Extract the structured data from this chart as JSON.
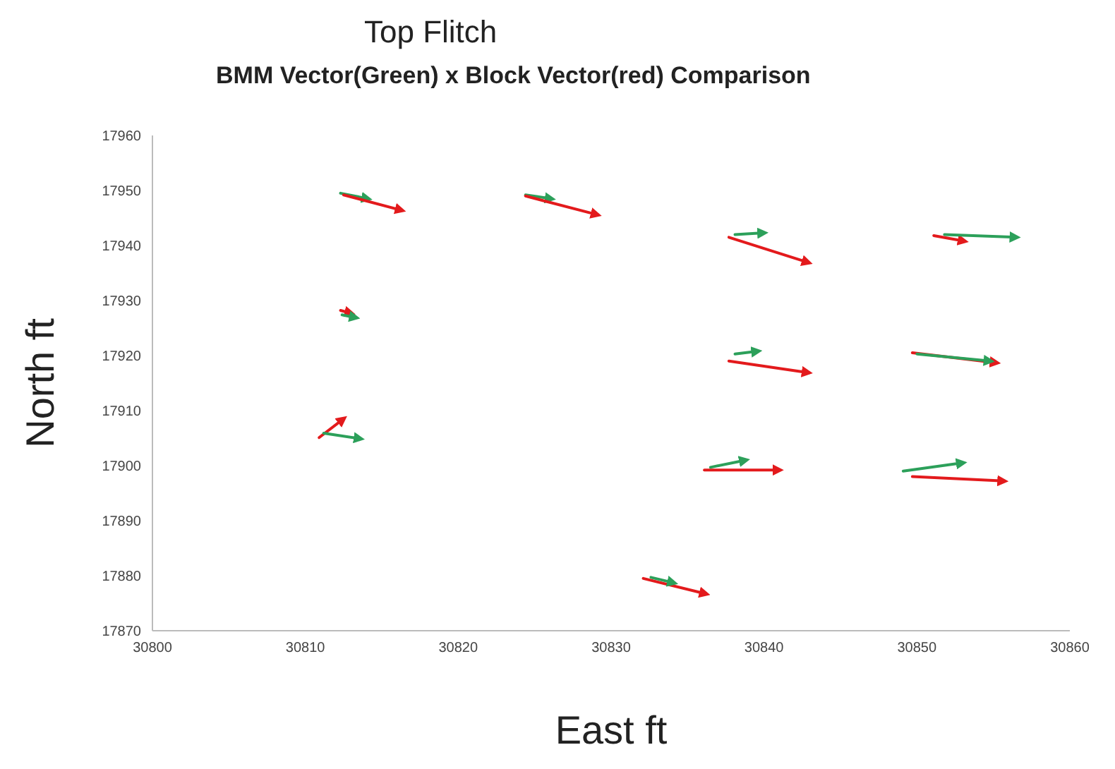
{
  "chart_data": {
    "type": "line",
    "title": "Top Flitch",
    "subtitle": "BMM Vector(Green) x Block Vector(red) Comparison",
    "xlabel": "East ft",
    "ylabel": "North ft",
    "xlim": [
      30800,
      30860
    ],
    "xticks": [
      30800,
      30810,
      30820,
      30830,
      30840,
      30850,
      30860
    ],
    "ylim": [
      17870,
      17960
    ],
    "yticks": [
      17870,
      17880,
      17890,
      17900,
      17910,
      17920,
      17930,
      17940,
      17950,
      17960
    ],
    "grid": false,
    "line_style": "solid",
    "series": [
      {
        "color": "#2ca05a",
        "x": [
          30812.3,
          30814.1
        ],
        "values": [
          17949.5,
          17948.5
        ]
      },
      {
        "color": "#e31a1c",
        "x": [
          30812.5,
          30816.3
        ],
        "values": [
          17949.2,
          17946.4
        ]
      },
      {
        "color": "#2ca05a",
        "x": [
          30824.4,
          30826.1
        ],
        "values": [
          17949.2,
          17948.5
        ]
      },
      {
        "color": "#e31a1c",
        "x": [
          30824.4,
          30829.1
        ],
        "values": [
          17949.0,
          17945.6
        ]
      },
      {
        "color": "#e31a1c",
        "x": [
          30837.7,
          30842.9
        ],
        "values": [
          17941.5,
          17936.9
        ]
      },
      {
        "color": "#2ca05a",
        "x": [
          30838.1,
          30840.0
        ],
        "values": [
          17942.0,
          17942.3
        ]
      },
      {
        "color": "#e31a1c",
        "x": [
          30851.1,
          30853.1
        ],
        "values": [
          17941.8,
          17940.8
        ]
      },
      {
        "color": "#2ca05a",
        "x": [
          30851.8,
          30856.5
        ],
        "values": [
          17942.0,
          17941.5
        ]
      },
      {
        "color": "#e31a1c",
        "x": [
          30812.3,
          30813.0
        ],
        "values": [
          17928.2,
          17927.7
        ]
      },
      {
        "color": "#2ca05a",
        "x": [
          30812.4,
          30813.3
        ],
        "values": [
          17927.4,
          17926.9
        ]
      },
      {
        "color": "#e31a1c",
        "x": [
          30810.9,
          30812.5
        ],
        "values": [
          17905.1,
          17908.5
        ]
      },
      {
        "color": "#2ca05a",
        "x": [
          30811.2,
          30813.6
        ],
        "values": [
          17905.9,
          17904.9
        ]
      },
      {
        "color": "#e31a1c",
        "x": [
          30837.7,
          30842.9
        ],
        "values": [
          17919.0,
          17916.9
        ]
      },
      {
        "color": "#2ca05a",
        "x": [
          30838.1,
          30839.6
        ],
        "values": [
          17920.3,
          17920.8
        ]
      },
      {
        "color": "#e31a1c",
        "x": [
          30849.7,
          30855.2
        ],
        "values": [
          17920.5,
          17918.7
        ]
      },
      {
        "color": "#2ca05a",
        "x": [
          30850.0,
          30854.8
        ],
        "values": [
          17920.3,
          17919.0
        ]
      },
      {
        "color": "#e31a1c",
        "x": [
          30836.1,
          30841.0
        ],
        "values": [
          17899.2,
          17899.2
        ]
      },
      {
        "color": "#2ca05a",
        "x": [
          30836.5,
          30838.8
        ],
        "values": [
          17899.7,
          17901.0
        ]
      },
      {
        "color": "#2ca05a",
        "x": [
          30849.1,
          30853.0
        ],
        "values": [
          17899.0,
          17900.5
        ]
      },
      {
        "color": "#e31a1c",
        "x": [
          30849.7,
          30855.7
        ],
        "values": [
          17898.0,
          17897.2
        ]
      },
      {
        "color": "#e31a1c",
        "x": [
          30832.1,
          30836.2
        ],
        "values": [
          17879.5,
          17876.7
        ]
      },
      {
        "color": "#2ca05a",
        "x": [
          30832.6,
          30834.1
        ],
        "values": [
          17879.7,
          17878.7
        ]
      }
    ]
  }
}
